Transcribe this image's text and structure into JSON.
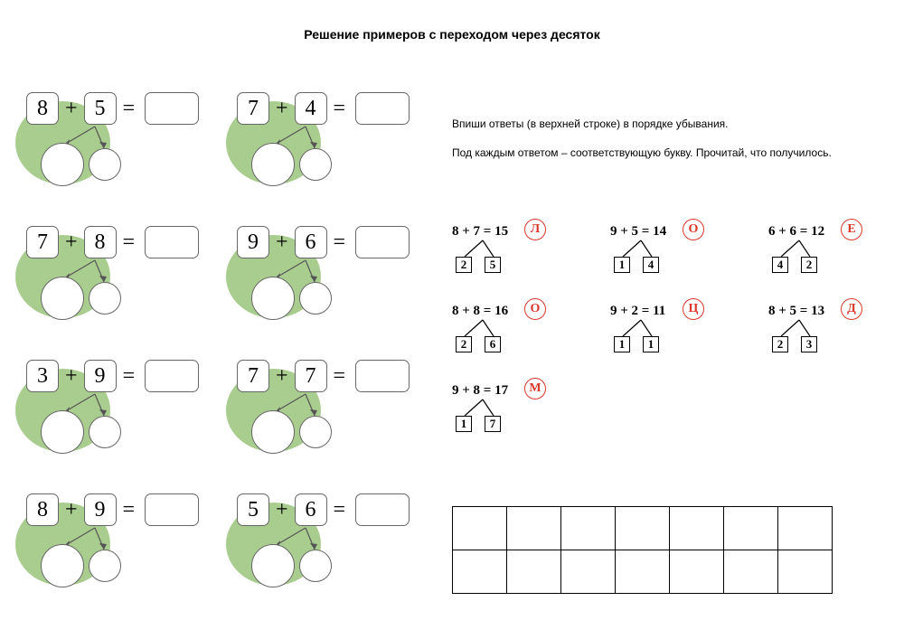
{
  "title": "Решение примеров с переходом через десяток",
  "instructions": {
    "line1": "Впиши ответы (в верхней строке) в порядке убывания.",
    "line2": "Под каждым ответом – соответствующую букву. Прочитай, что получилось."
  },
  "oval_color": "#a9cd8e",
  "letter_circle_color": "#d9372a",
  "problems": [
    {
      "a": "8",
      "b": "5"
    },
    {
      "a": "7",
      "b": "4"
    },
    {
      "a": "7",
      "b": "8"
    },
    {
      "a": "9",
      "b": "6"
    },
    {
      "a": "3",
      "b": "9"
    },
    {
      "a": "7",
      "b": "7"
    },
    {
      "a": "8",
      "b": "9"
    },
    {
      "a": "5",
      "b": "6"
    }
  ],
  "letter_problems": [
    {
      "eq": "8 + 7 = 15",
      "letter": "Л",
      "s1": "2",
      "s2": "5"
    },
    {
      "eq": "9 + 5 = 14",
      "letter": "О",
      "s1": "1",
      "s2": "4"
    },
    {
      "eq": "6 + 6 = 12",
      "letter": "Е",
      "s1": "4",
      "s2": "2"
    },
    {
      "eq": "8 + 8 = 16",
      "letter": "О",
      "s1": "2",
      "s2": "6"
    },
    {
      "eq": "9 + 2 = 11",
      "letter": "Ц",
      "s1": "1",
      "s2": "1"
    },
    {
      "eq": "8 + 5 = 13",
      "letter": "Д",
      "s1": "2",
      "s2": "3"
    },
    {
      "eq": "9 + 8 = 17",
      "letter": "М",
      "s1": "1",
      "s2": "7"
    }
  ],
  "answer_grid": {
    "rows": 2,
    "cols": 7
  }
}
